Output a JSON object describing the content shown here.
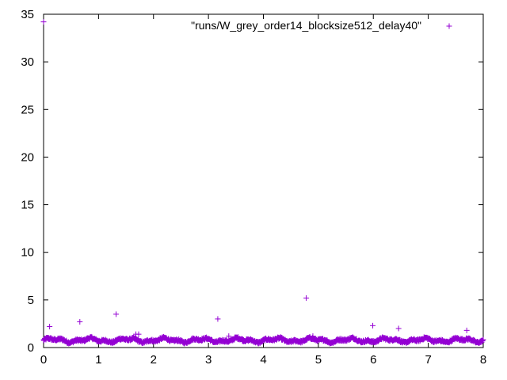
{
  "chart_data": {
    "type": "scatter",
    "title": "",
    "xlabel": "",
    "ylabel": "",
    "xlim": [
      0,
      8
    ],
    "ylim": [
      0,
      35
    ],
    "xticks": [
      0,
      1,
      2,
      3,
      4,
      5,
      6,
      7,
      8
    ],
    "yticks": [
      0,
      5,
      10,
      15,
      20,
      25,
      30,
      35
    ],
    "grid": false,
    "legend_position": "top-right",
    "marker": "+",
    "color": "#9400d3",
    "series": [
      {
        "name": "\"runs/W_grey_order14_blocksize512_delay40\"",
        "outliers": [
          {
            "x": 0.0,
            "y": 34.2
          },
          {
            "x": 0.11,
            "y": 2.2
          },
          {
            "x": 0.66,
            "y": 2.7
          },
          {
            "x": 1.32,
            "y": 3.5
          },
          {
            "x": 1.68,
            "y": 1.4
          },
          {
            "x": 1.73,
            "y": 1.4
          },
          {
            "x": 3.17,
            "y": 3.0
          },
          {
            "x": 3.37,
            "y": 1.2
          },
          {
            "x": 4.78,
            "y": 5.2
          },
          {
            "x": 4.9,
            "y": 1.2
          },
          {
            "x": 5.99,
            "y": 2.3
          },
          {
            "x": 6.46,
            "y": 2.0
          },
          {
            "x": 7.7,
            "y": 1.8
          }
        ],
        "baseline_band": {
          "x_range": [
            0,
            8
          ],
          "y_typical_range": [
            0.4,
            1.1
          ]
        }
      }
    ]
  }
}
